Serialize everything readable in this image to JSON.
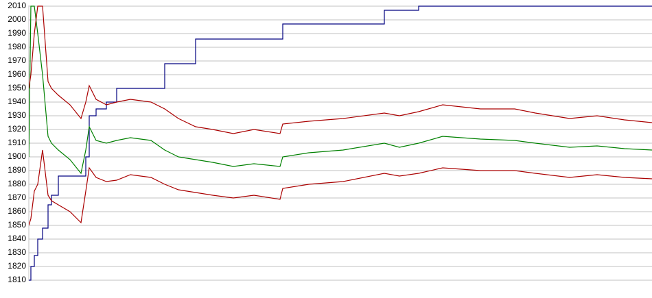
{
  "chart_data": {
    "type": "line",
    "x": [
      0,
      3,
      8,
      13,
      20,
      28,
      33,
      43,
      60,
      76,
      83,
      88,
      98,
      113,
      128,
      148,
      178,
      198,
      218,
      243,
      268,
      298,
      328,
      366,
      370,
      408,
      458,
      518,
      540,
      568,
      603,
      658,
      708,
      738,
      788,
      828,
      868,
      908
    ],
    "xlim": [
      0,
      908
    ],
    "ylim": [
      1810,
      2010
    ],
    "yticks": [
      1810,
      1820,
      1830,
      1840,
      1850,
      1860,
      1870,
      1880,
      1890,
      1900,
      1910,
      1920,
      1930,
      1940,
      1950,
      1960,
      1970,
      1980,
      1990,
      2000,
      2010
    ],
    "grid": true,
    "series": [
      {
        "color": "#000080",
        "step": true,
        "values": [
          1810,
          1820,
          1828,
          1840,
          1848,
          1865,
          1872,
          1886,
          1886,
          1886,
          1900,
          1930,
          1935,
          1940,
          1950,
          1950,
          1950,
          1968,
          1968,
          1986,
          1986,
          1986,
          1986,
          1986,
          1997,
          1997,
          1997,
          2007,
          2007,
          2010,
          2010,
          2010,
          2010,
          2010,
          2010,
          2010,
          2010,
          2010
        ]
      },
      {
        "color": "#008000",
        "values": [
          1900,
          2010,
          2010,
          1990,
          1960,
          1915,
          1910,
          1905,
          1898,
          1888,
          1905,
          1922,
          1912,
          1910,
          1912,
          1914,
          1912,
          1905,
          1900,
          1898,
          1896,
          1893,
          1895,
          1893,
          1900,
          1903,
          1905,
          1910,
          1907,
          1910,
          1915,
          1913,
          1912,
          1910,
          1907,
          1908,
          1906,
          1905
        ]
      },
      {
        "color": "#aa0000",
        "values": [
          1950,
          1960,
          1990,
          2010,
          2010,
          1955,
          1950,
          1945,
          1938,
          1928,
          1940,
          1952,
          1942,
          1938,
          1940,
          1942,
          1940,
          1935,
          1928,
          1922,
          1920,
          1917,
          1920,
          1917,
          1924,
          1926,
          1928,
          1932,
          1930,
          1933,
          1938,
          1935,
          1935,
          1932,
          1928,
          1930,
          1927,
          1925
        ]
      },
      {
        "color": "#aa0000",
        "values": [
          1850,
          1855,
          1875,
          1880,
          1905,
          1872,
          1868,
          1865,
          1860,
          1852,
          1875,
          1892,
          1885,
          1882,
          1883,
          1887,
          1885,
          1880,
          1876,
          1874,
          1872,
          1870,
          1872,
          1869,
          1877,
          1880,
          1882,
          1888,
          1886,
          1888,
          1892,
          1890,
          1890,
          1888,
          1885,
          1887,
          1885,
          1884
        ]
      }
    ]
  }
}
